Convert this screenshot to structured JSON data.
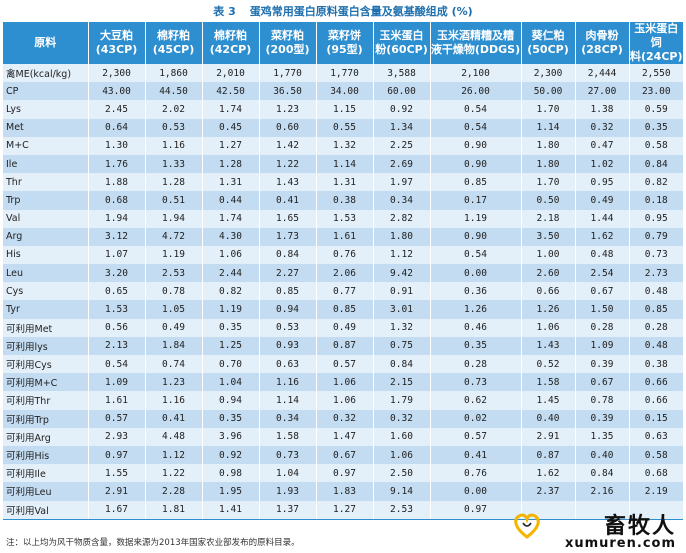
{
  "table": {
    "label": "表 3",
    "title": "蛋鸡常用蛋白原料蛋白含量及氨基酸组成 (%)",
    "header": {
      "row_header": "原料",
      "columns": [
        "大豆粕\n(43CP)",
        "棉籽粕\n(45CP)",
        "棉籽粕\n(42CP)",
        "菜籽粕\n(200型)",
        "菜籽饼\n(95型)",
        "玉米蛋白\n粉(60CP)",
        "玉米酒精糟及糟\n液干燥物(DDGS)",
        "葵仁粕\n(50CP)",
        "肉骨粉\n(28CP)",
        "玉米蛋白饲\n料(24CP)"
      ]
    },
    "rows": [
      {
        "label": "禽ME(kcal/kg)",
        "values": [
          "2,300",
          "1,860",
          "2,010",
          "1,770",
          "1,770",
          "3,588",
          "2,100",
          "2,300",
          "2,444",
          "2,550"
        ]
      },
      {
        "label": "CP",
        "values": [
          "43.00",
          "44.50",
          "42.50",
          "36.50",
          "34.00",
          "60.00",
          "26.00",
          "50.00",
          "27.00",
          "23.00"
        ]
      },
      {
        "label": "Lys",
        "values": [
          "2.45",
          "2.02",
          "1.74",
          "1.23",
          "1.15",
          "0.92",
          "0.54",
          "1.70",
          "1.38",
          "0.59"
        ]
      },
      {
        "label": "Met",
        "values": [
          "0.64",
          "0.53",
          "0.45",
          "0.60",
          "0.55",
          "1.34",
          "0.54",
          "1.14",
          "0.32",
          "0.35"
        ]
      },
      {
        "label": "M+C",
        "values": [
          "1.30",
          "1.16",
          "1.27",
          "1.42",
          "1.32",
          "2.25",
          "0.90",
          "1.80",
          "0.47",
          "0.58"
        ]
      },
      {
        "label": "Ile",
        "values": [
          "1.76",
          "1.33",
          "1.28",
          "1.22",
          "1.14",
          "2.69",
          "0.90",
          "1.80",
          "1.02",
          "0.84"
        ]
      },
      {
        "label": "Thr",
        "values": [
          "1.88",
          "1.28",
          "1.31",
          "1.43",
          "1.31",
          "1.97",
          "0.85",
          "1.70",
          "0.95",
          "0.82"
        ]
      },
      {
        "label": "Trp",
        "values": [
          "0.68",
          "0.51",
          "0.44",
          "0.41",
          "0.38",
          "0.34",
          "0.17",
          "0.50",
          "0.49",
          "0.18"
        ]
      },
      {
        "label": "Val",
        "values": [
          "1.94",
          "1.94",
          "1.74",
          "1.65",
          "1.53",
          "2.82",
          "1.19",
          "2.18",
          "1.44",
          "0.95"
        ]
      },
      {
        "label": "Arg",
        "values": [
          "3.12",
          "4.72",
          "4.30",
          "1.73",
          "1.61",
          "1.80",
          "0.90",
          "3.50",
          "1.62",
          "0.79"
        ]
      },
      {
        "label": "His",
        "values": [
          "1.07",
          "1.19",
          "1.06",
          "0.84",
          "0.76",
          "1.12",
          "0.54",
          "1.00",
          "0.48",
          "0.73"
        ]
      },
      {
        "label": "Leu",
        "values": [
          "3.20",
          "2.53",
          "2.44",
          "2.27",
          "2.06",
          "9.42",
          "0.00",
          "2.60",
          "2.54",
          "2.73"
        ]
      },
      {
        "label": "Cys",
        "values": [
          "0.65",
          "0.78",
          "0.82",
          "0.85",
          "0.77",
          "0.91",
          "0.36",
          "0.66",
          "0.67",
          "0.48"
        ]
      },
      {
        "label": "Tyr",
        "values": [
          "1.53",
          "1.05",
          "1.19",
          "0.94",
          "0.85",
          "3.01",
          "1.26",
          "1.26",
          "1.50",
          "0.85"
        ]
      },
      {
        "label": "可利用Met",
        "values": [
          "0.56",
          "0.49",
          "0.35",
          "0.53",
          "0.49",
          "1.32",
          "0.46",
          "1.06",
          "0.28",
          "0.28"
        ]
      },
      {
        "label": "可利用lys",
        "values": [
          "2.13",
          "1.84",
          "1.25",
          "0.93",
          "0.87",
          "0.75",
          "0.35",
          "1.43",
          "1.09",
          "0.48"
        ]
      },
      {
        "label": "可利用Cys",
        "values": [
          "0.54",
          "0.74",
          "0.70",
          "0.63",
          "0.57",
          "0.84",
          "0.28",
          "0.52",
          "0.39",
          "0.38"
        ]
      },
      {
        "label": "可利用M+C",
        "values": [
          "1.09",
          "1.23",
          "1.04",
          "1.16",
          "1.06",
          "2.15",
          "0.73",
          "1.58",
          "0.67",
          "0.66"
        ]
      },
      {
        "label": "可利用Thr",
        "values": [
          "1.61",
          "1.16",
          "0.94",
          "1.14",
          "1.06",
          "1.79",
          "0.62",
          "1.45",
          "0.78",
          "0.66"
        ]
      },
      {
        "label": "可利用Trp",
        "values": [
          "0.57",
          "0.41",
          "0.35",
          "0.34",
          "0.32",
          "0.32",
          "0.02",
          "0.40",
          "0.39",
          "0.15"
        ]
      },
      {
        "label": "可利用Arg",
        "values": [
          "2.93",
          "4.48",
          "3.96",
          "1.58",
          "1.47",
          "1.60",
          "0.57",
          "2.91",
          "1.35",
          "0.63"
        ]
      },
      {
        "label": "可利用His",
        "values": [
          "0.97",
          "1.12",
          "0.92",
          "0.73",
          "0.67",
          "1.06",
          "0.41",
          "0.87",
          "0.40",
          "0.58"
        ]
      },
      {
        "label": "可利用Ile",
        "values": [
          "1.55",
          "1.22",
          "0.98",
          "1.04",
          "0.97",
          "2.50",
          "0.76",
          "1.62",
          "0.84",
          "0.68"
        ]
      },
      {
        "label": "可利用Leu",
        "values": [
          "2.91",
          "2.28",
          "1.95",
          "1.93",
          "1.83",
          "9.14",
          "0.00",
          "2.37",
          "2.16",
          "2.19"
        ]
      },
      {
        "label": "可利用Val",
        "values": [
          "1.67",
          "1.81",
          "1.41",
          "1.37",
          "1.27",
          "2.53",
          "0.97",
          "",
          "",
          ""
        ]
      }
    ],
    "note": "注：以上均为风干物质含量，数据来源为2013年国家农业部发布的原料目录。"
  },
  "watermark": {
    "cn_text": "畜牧人",
    "en_text": "xumuren.com",
    "heart_color": "#f4b400"
  },
  "colors": {
    "header_bg": "#2e8fd0",
    "row_light": "#e3eff9",
    "row_dark": "#c3dcf1",
    "title_color": "#1e6fae"
  }
}
